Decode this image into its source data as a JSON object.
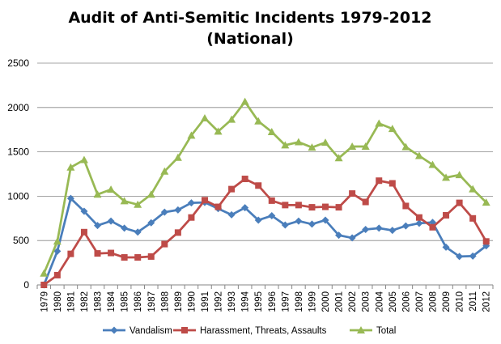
{
  "chart_data": {
    "type": "line",
    "title": "Audit of Anti-Semitic Incidents 1979-2012",
    "subtitle": "(National)",
    "xlabel": "",
    "ylabel": "",
    "ylim": [
      0,
      2500
    ],
    "yticks": [
      0,
      500,
      1000,
      1500,
      2000,
      2500
    ],
    "grid": true,
    "legend_position": "bottom",
    "categories": [
      "1979",
      "1980",
      "1981",
      "1982",
      "1983",
      "1984",
      "1985",
      "1986",
      "1987",
      "1988",
      "1989",
      "1990",
      "1991",
      "1992",
      "1993",
      "1994",
      "1995",
      "1996",
      "1997",
      "1998",
      "1999",
      "2000",
      "2001",
      "2002",
      "2003",
      "2004",
      "2005",
      "2006",
      "2007",
      "2008",
      "2009",
      "2010",
      "2011",
      "2012"
    ],
    "series": [
      {
        "name": "Vandalism",
        "color": "#4a7ebb",
        "marker": "diamond",
        "values": [
          0,
          380,
          975,
          830,
          670,
          720,
          640,
          595,
          700,
          820,
          845,
          925,
          930,
          860,
          790,
          870,
          730,
          780,
          675,
          720,
          685,
          730,
          560,
          530,
          625,
          640,
          615,
          665,
          695,
          705,
          425,
          320,
          325,
          440
        ]
      },
      {
        "name": "Harassment, Threats, Assaults",
        "color": "#be4b48",
        "marker": "square",
        "values": [
          0,
          110,
          350,
          595,
          355,
          360,
          310,
          310,
          320,
          460,
          590,
          760,
          955,
          880,
          1080,
          1195,
          1120,
          950,
          900,
          900,
          875,
          880,
          875,
          1030,
          935,
          1175,
          1145,
          890,
          760,
          650,
          785,
          925,
          750,
          490
        ]
      },
      {
        "name": "Total",
        "color": "#98b954",
        "marker": "triangle",
        "values": [
          130,
          490,
          1325,
          1410,
          1020,
          1075,
          945,
          905,
          1020,
          1280,
          1435,
          1685,
          1880,
          1730,
          1865,
          2065,
          1845,
          1725,
          1575,
          1610,
          1550,
          1605,
          1430,
          1560,
          1560,
          1820,
          1760,
          1555,
          1455,
          1355,
          1210,
          1240,
          1080,
          930
        ]
      }
    ]
  }
}
